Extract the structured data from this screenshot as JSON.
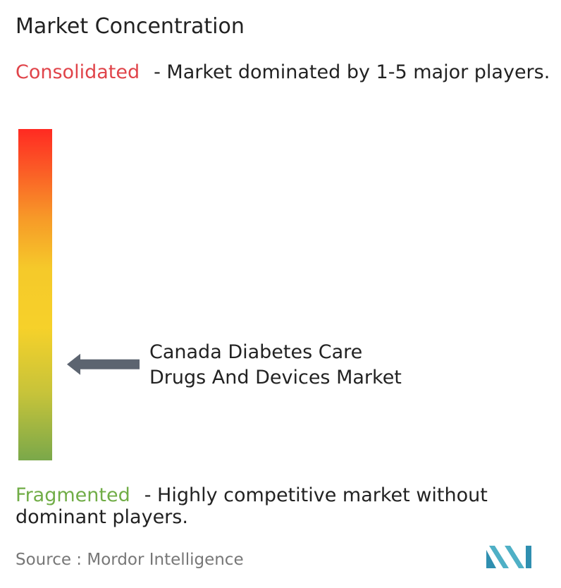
{
  "title": "Market Concentration",
  "consolidated": {
    "label": "Consolidated",
    "description": "- Market dominated by 1-5 major players.",
    "color": "#e0444a"
  },
  "fragmented": {
    "label": "Fragmented",
    "description": "- Highly competitive market without dominant players.",
    "color": "#71ad47"
  },
  "market": {
    "name_line1": "Canada Diabetes Care",
    "name_line2": "Drugs And Devices Market"
  },
  "chart_data": {
    "type": "scale",
    "title": "Market Concentration",
    "scale_top": "Consolidated",
    "scale_bottom": "Fragmented",
    "marker_label": "Canada Diabetes Care Drugs And Devices Market",
    "marker_position": 0.29,
    "gradient_colors": [
      "#ff2a22",
      "#f79a28",
      "#f6d12a",
      "#7aa84a"
    ]
  },
  "source": {
    "text": "Source :  Mordor Intelligence"
  },
  "logo": {
    "icon": "mordor-intelligence-logo",
    "color": "#4fb0c6"
  }
}
